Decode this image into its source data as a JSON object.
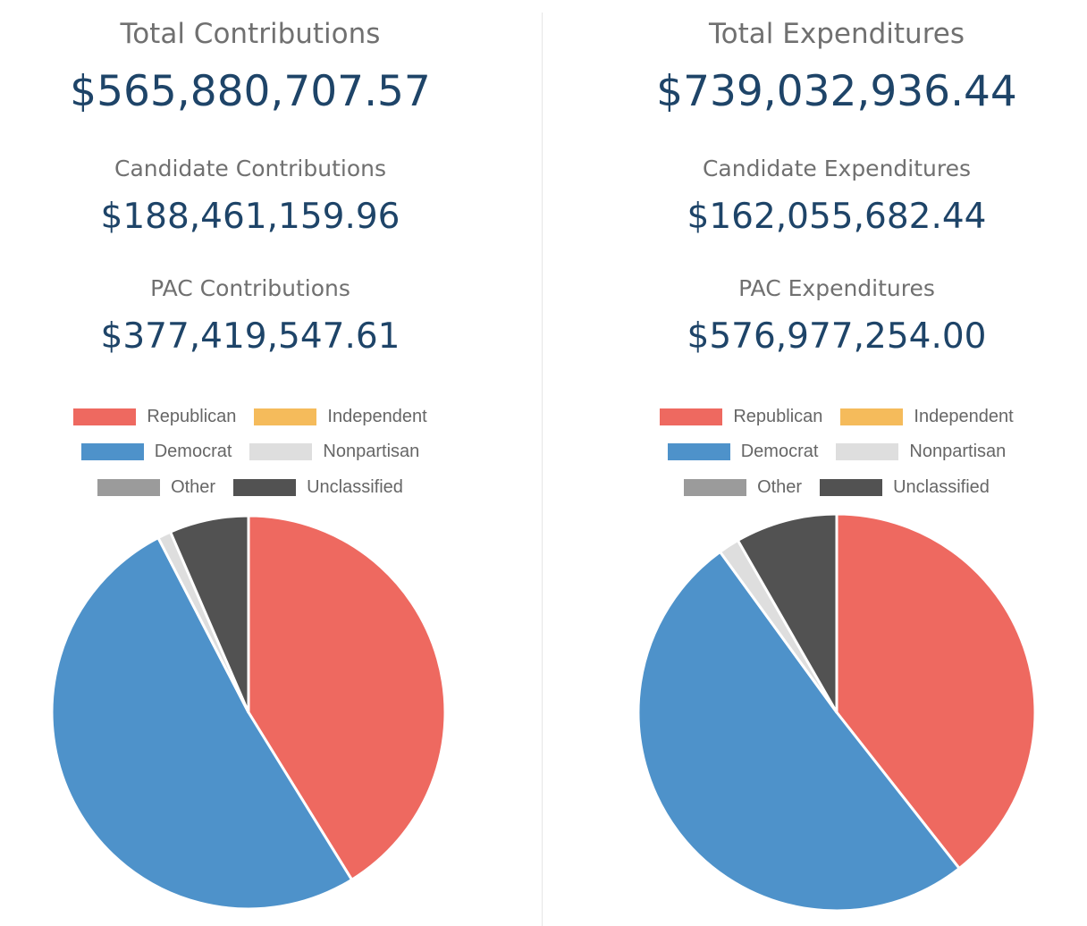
{
  "legend": [
    {
      "label": "Republican",
      "color": "#EE6960"
    },
    {
      "label": "Independent",
      "color": "#F5BB5B"
    },
    {
      "label": "Democrat",
      "color": "#4E92CA"
    },
    {
      "label": "Nonpartisan",
      "color": "#DEDEDE"
    },
    {
      "label": "Other",
      "color": "#9B9B9B"
    },
    {
      "label": "Unclassified",
      "color": "#525252"
    }
  ],
  "contributions": {
    "total_label": "Total Contributions",
    "total_value": "$565,880,707.57",
    "candidate_label": "Candidate Contributions",
    "candidate_value": "$188,461,159.96",
    "pac_label": "PAC Contributions",
    "pac_value": "$377,419,547.61"
  },
  "expenditures": {
    "total_label": "Total Expenditures",
    "total_value": "$739,032,936.44",
    "candidate_label": "Candidate Expenditures",
    "candidate_value": "$162,055,682.44",
    "pac_label": "PAC Expenditures",
    "pac_value": "$576,977,254.00"
  },
  "chart_data": [
    {
      "type": "pie",
      "title": "",
      "labels": [
        "Republican",
        "Independent",
        "Democrat",
        "Nonpartisan",
        "Other",
        "Unclassified"
      ],
      "values": [
        41.2,
        0,
        51.2,
        1.1,
        0,
        6.5
      ],
      "colors": [
        "#EE6960",
        "#F5BB5B",
        "#4E92CA",
        "#DEDEDE",
        "#9B9B9B",
        "#525252"
      ],
      "legend": "top"
    },
    {
      "type": "pie",
      "title": "",
      "labels": [
        "Republican",
        "Independent",
        "Democrat",
        "Nonpartisan",
        "Other",
        "Unclassified"
      ],
      "values": [
        39.4,
        0,
        50.6,
        1.7,
        0,
        8.3
      ],
      "colors": [
        "#EE6960",
        "#F5BB5B",
        "#4E92CA",
        "#DEDEDE",
        "#9B9B9B",
        "#525252"
      ],
      "legend": "top"
    }
  ]
}
